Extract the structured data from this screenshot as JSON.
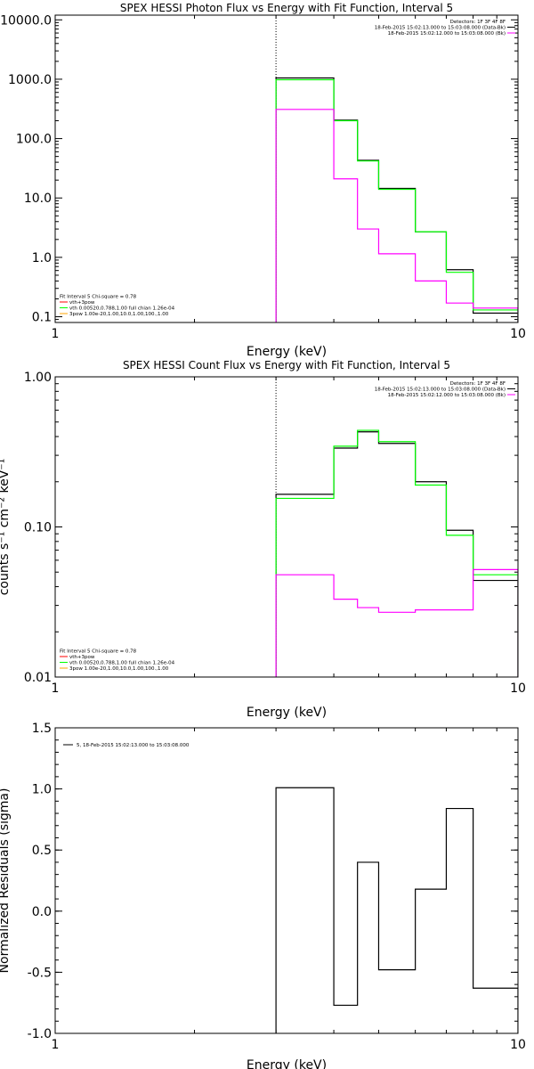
{
  "chart_data": [
    {
      "type": "line",
      "title": "SPEX HESSI Photon Flux vs Energy with Fit Function, Interval 5",
      "xlabel": "Energy (keV)",
      "ylabel": "",
      "xscale": "log",
      "yscale": "log",
      "xlim": [
        1,
        10
      ],
      "ylim": [
        0.08,
        12000
      ],
      "xticks": [
        {
          "v": 1,
          "label": "1"
        },
        {
          "v": 10,
          "label": "10"
        }
      ],
      "yticks": [
        {
          "v": 0.1,
          "label": "0.1"
        },
        {
          "v": 1,
          "label": "1.0"
        },
        {
          "v": 10,
          "label": "10.0"
        },
        {
          "v": 100,
          "label": "100.0"
        },
        {
          "v": 1000,
          "label": "1000.0"
        },
        {
          "v": 10000,
          "label": "10000.0"
        }
      ],
      "vline_x": 3.0,
      "legend_topright": [
        {
          "text": "Detectors: 1F 3F 4F 8F",
          "color": null
        },
        {
          "text": "18-Feb-2015 15:02:13.000 to 15:03:08.000 (Data-Bk)",
          "color": "#000000"
        },
        {
          "text": "18-Feb-2015 15:02:12.000 to 15:03:08.000 (Bk)",
          "color": "#ff00ff"
        }
      ],
      "legend_bottomleft": [
        {
          "text": "Fit Interval 5   Chi-square = 0.78",
          "color": null
        },
        {
          "text": "vth+3pow",
          "color": "#ff0000"
        },
        {
          "text": "vth 0.00520,0.788,1.00  full chian 1.26e-04",
          "color": "#00ff00"
        },
        {
          "text": "3pow 1.00e-20,1.00,10.0,1.00,100.,1.00",
          "color": "#ffa500"
        }
      ],
      "edges": [
        3.0,
        3.5,
        4.0,
        4.5,
        5.0,
        6.0,
        7.0,
        8.0,
        10.0
      ],
      "series": [
        {
          "name": "18-Feb-2015 15:02:13.000 to 15:03:08.000 (Data-Bk)",
          "color": "#000000",
          "values": [
            1050,
            1050,
            205,
            43,
            14.5,
            2.7,
            0.62,
            0.115
          ]
        },
        {
          "name": "vth+3pow",
          "color": "#00ff00",
          "values": [
            980,
            980,
            200,
            42,
            14,
            2.7,
            0.56,
            0.13
          ]
        },
        {
          "name": "18-Feb-2015 15:02:12.000 to 15:03:08.000 (Bk)",
          "color": "#ff00ff",
          "values": [
            310,
            310,
            21,
            3.0,
            1.15,
            0.4,
            0.17,
            0.14
          ]
        }
      ]
    },
    {
      "type": "line",
      "title": "SPEX HESSI Count Flux vs Energy with Fit Function, Interval 5",
      "xlabel": "Energy (keV)",
      "ylabel": "counts s⁻¹ cm⁻² keV⁻¹",
      "xscale": "log",
      "yscale": "log",
      "xlim": [
        1,
        10
      ],
      "ylim": [
        0.01,
        1.0
      ],
      "xticks": [
        {
          "v": 1,
          "label": "1"
        },
        {
          "v": 10,
          "label": "10"
        }
      ],
      "yticks": [
        {
          "v": 0.01,
          "label": "0.01"
        },
        {
          "v": 0.1,
          "label": "0.10"
        },
        {
          "v": 1,
          "label": "1.00"
        }
      ],
      "vline_x": 3.0,
      "legend_topright": [
        {
          "text": "Detectors: 1F 3F 4F 8F",
          "color": null
        },
        {
          "text": "18-Feb-2015 15:02:13.000 to 15:03:08.000 (Data-Bk)",
          "color": "#000000"
        },
        {
          "text": "18-Feb-2015 15:02:12.000 to 15:03:08.000 (Bk)",
          "color": "#ff00ff"
        }
      ],
      "legend_bottomleft": [
        {
          "text": "Fit Interval 5   Chi-square = 0.78",
          "color": null
        },
        {
          "text": "vth+3pow",
          "color": "#ff0000"
        },
        {
          "text": "vth 0.00520,0.788,1.00  full chian 1.26e-04",
          "color": "#00ff00"
        },
        {
          "text": "3pow 1.00e-20,1.00,10.0,1.00,100.,1.00",
          "color": "#ffa500"
        }
      ],
      "edges": [
        3.0,
        3.5,
        4.0,
        4.5,
        5.0,
        6.0,
        7.0,
        8.0,
        10.0
      ],
      "series": [
        {
          "name": "18-Feb-2015 15:02:13.000 to 15:03:08.000 (Data-Bk)",
          "color": "#000000",
          "values": [
            0.165,
            0.165,
            0.335,
            0.43,
            0.36,
            0.2,
            0.095,
            0.044
          ]
        },
        {
          "name": "vth+3pow",
          "color": "#00ff00",
          "values": [
            0.155,
            0.155,
            0.345,
            0.44,
            0.37,
            0.19,
            0.088,
            0.048
          ]
        },
        {
          "name": "18-Feb-2015 15:02:12.000 to 15:03:08.000 (Bk)",
          "color": "#ff00ff",
          "values": [
            0.048,
            0.048,
            0.033,
            0.029,
            0.027,
            0.028,
            0.028,
            0.052
          ]
        }
      ]
    },
    {
      "type": "line",
      "title": "",
      "xlabel": "Energy (keV)",
      "ylabel": "Normalized Residuals (sigma)",
      "xscale": "log",
      "yscale": "linear",
      "xlim": [
        1,
        10
      ],
      "ylim": [
        -1.0,
        1.5
      ],
      "xticks": [
        {
          "v": 1,
          "label": "1"
        },
        {
          "v": 10,
          "label": "10"
        }
      ],
      "yticks": [
        {
          "v": -1.0,
          "label": "-1.0"
        },
        {
          "v": -0.5,
          "label": "-0.5"
        },
        {
          "v": 0.0,
          "label": "0.0"
        },
        {
          "v": 0.5,
          "label": "0.5"
        },
        {
          "v": 1.0,
          "label": "1.0"
        },
        {
          "v": 1.5,
          "label": "1.5"
        }
      ],
      "legend_topleft": [
        {
          "text": "5, 18-Feb-2015 15:02:13.000 to 15:03:08.000",
          "color": "#000000"
        }
      ],
      "edges": [
        3.0,
        3.5,
        4.0,
        4.5,
        5.0,
        6.0,
        7.0,
        8.0,
        10.0
      ],
      "series": [
        {
          "name": "5, 18-Feb-2015 15:02:13.000 to 15:03:08.000",
          "color": "#000000",
          "values": [
            1.01,
            1.01,
            -0.77,
            0.4,
            -0.48,
            0.18,
            0.84,
            -0.63
          ]
        }
      ]
    }
  ]
}
